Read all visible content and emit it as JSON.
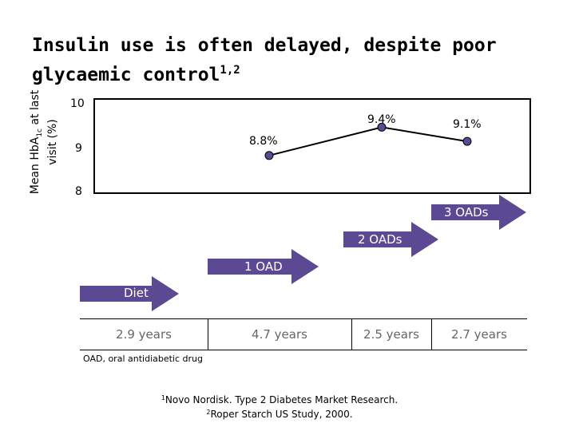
{
  "slide": {
    "title": "Insulin use is often delayed, despite poor glycaemic control",
    "title_refs": "1,2",
    "footnote": "OAD, oral antidiabetic drug",
    "references": [
      {
        "num": "1",
        "text": "Novo Nordisk. Type 2 Diabetes Market Research."
      },
      {
        "num": "2",
        "text": "Roper Starch US Study, 2000."
      }
    ]
  },
  "chart_data": {
    "type": "line",
    "title": "Insulin use is often delayed, despite poor glycaemic control",
    "ylabel_line1": "Mean HbA",
    "ylabel_sub": "1c",
    "ylabel_line1_rest": " at last",
    "ylabel_line2": "visit (%)",
    "ylim": [
      8,
      10
    ],
    "yticks": [
      "10",
      "9",
      "8"
    ],
    "series": [
      {
        "name": "Mean HbA1c",
        "x": [
          "1 OAD",
          "2 OADs",
          "3 OADs"
        ],
        "values": [
          8.8,
          9.4,
          9.1
        ],
        "labels": [
          "8.8%",
          "9.4%",
          "9.1%"
        ]
      }
    ],
    "stages": [
      "Diet",
      "1 OAD",
      "2 OADs",
      "3 OADs"
    ],
    "durations": [
      "2.9 years",
      "4.7 years",
      "2.5 years",
      "2.7 years"
    ]
  },
  "colors": {
    "arrow": "#5b4a93",
    "line": "#000000",
    "marker": "#5b4a93"
  }
}
